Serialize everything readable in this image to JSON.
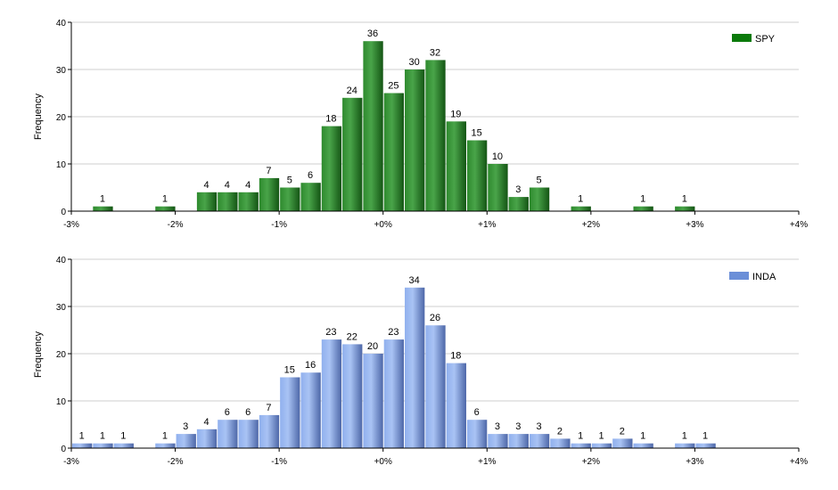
{
  "chart_data": [
    {
      "type": "bar",
      "series": [
        {
          "name": "SPY",
          "color": "#1f7a1f"
        }
      ],
      "ylabel": "Frequency",
      "xlim": [
        -3,
        4
      ],
      "ylim": [
        0,
        40
      ],
      "xticks": [
        "-3%",
        "-2%",
        "-1%",
        "+0%",
        "+1%",
        "+2%",
        "+3%",
        "+4%"
      ],
      "yticks": [
        "0",
        "10",
        "20",
        "30",
        "40"
      ],
      "grid": true,
      "legend": "top-right",
      "bin_width": 0.2,
      "bins": [
        {
          "x": -2.7,
          "v": 1
        },
        {
          "x": -2.1,
          "v": 1
        },
        {
          "x": -1.7,
          "v": 4
        },
        {
          "x": -1.5,
          "v": 4
        },
        {
          "x": -1.3,
          "v": 4
        },
        {
          "x": -1.1,
          "v": 7
        },
        {
          "x": -0.9,
          "v": 5
        },
        {
          "x": -0.7,
          "v": 6
        },
        {
          "x": -0.5,
          "v": 18
        },
        {
          "x": -0.3,
          "v": 24
        },
        {
          "x": -0.1,
          "v": 36
        },
        {
          "x": 0.1,
          "v": 25
        },
        {
          "x": 0.3,
          "v": 30
        },
        {
          "x": 0.5,
          "v": 32
        },
        {
          "x": 0.7,
          "v": 19
        },
        {
          "x": 0.9,
          "v": 15
        },
        {
          "x": 1.1,
          "v": 10
        },
        {
          "x": 1.3,
          "v": 3
        },
        {
          "x": 1.5,
          "v": 5
        },
        {
          "x": 1.9,
          "v": 1
        },
        {
          "x": 2.5,
          "v": 1
        },
        {
          "x": 2.9,
          "v": 1
        }
      ]
    },
    {
      "type": "bar",
      "series": [
        {
          "name": "INDA",
          "color": "#6b8fd8"
        }
      ],
      "ylabel": "Frequency",
      "xlim": [
        -3,
        4
      ],
      "ylim": [
        0,
        40
      ],
      "xticks": [
        "-3%",
        "-2%",
        "-1%",
        "+0%",
        "+1%",
        "+2%",
        "+3%",
        "+4%"
      ],
      "yticks": [
        "0",
        "10",
        "20",
        "30",
        "40"
      ],
      "grid": true,
      "legend": "top-right",
      "bin_width": 0.2,
      "bins": [
        {
          "x": -2.9,
          "v": 1
        },
        {
          "x": -2.7,
          "v": 1
        },
        {
          "x": -2.5,
          "v": 1
        },
        {
          "x": -2.1,
          "v": 1
        },
        {
          "x": -1.9,
          "v": 3
        },
        {
          "x": -1.7,
          "v": 4
        },
        {
          "x": -1.5,
          "v": 6
        },
        {
          "x": -1.3,
          "v": 6
        },
        {
          "x": -1.1,
          "v": 7
        },
        {
          "x": -0.9,
          "v": 15
        },
        {
          "x": -0.7,
          "v": 16
        },
        {
          "x": -0.5,
          "v": 23
        },
        {
          "x": -0.3,
          "v": 22
        },
        {
          "x": -0.1,
          "v": 20
        },
        {
          "x": 0.1,
          "v": 23
        },
        {
          "x": 0.3,
          "v": 34
        },
        {
          "x": 0.5,
          "v": 26
        },
        {
          "x": 0.7,
          "v": 18
        },
        {
          "x": 0.9,
          "v": 6
        },
        {
          "x": 1.1,
          "v": 3
        },
        {
          "x": 1.3,
          "v": 3
        },
        {
          "x": 1.5,
          "v": 3
        },
        {
          "x": 1.7,
          "v": 2
        },
        {
          "x": 1.9,
          "v": 1
        },
        {
          "x": 2.1,
          "v": 1
        },
        {
          "x": 2.3,
          "v": 2
        },
        {
          "x": 2.5,
          "v": 1
        },
        {
          "x": 2.9,
          "v": 1
        },
        {
          "x": 3.1,
          "v": 1
        }
      ]
    }
  ]
}
